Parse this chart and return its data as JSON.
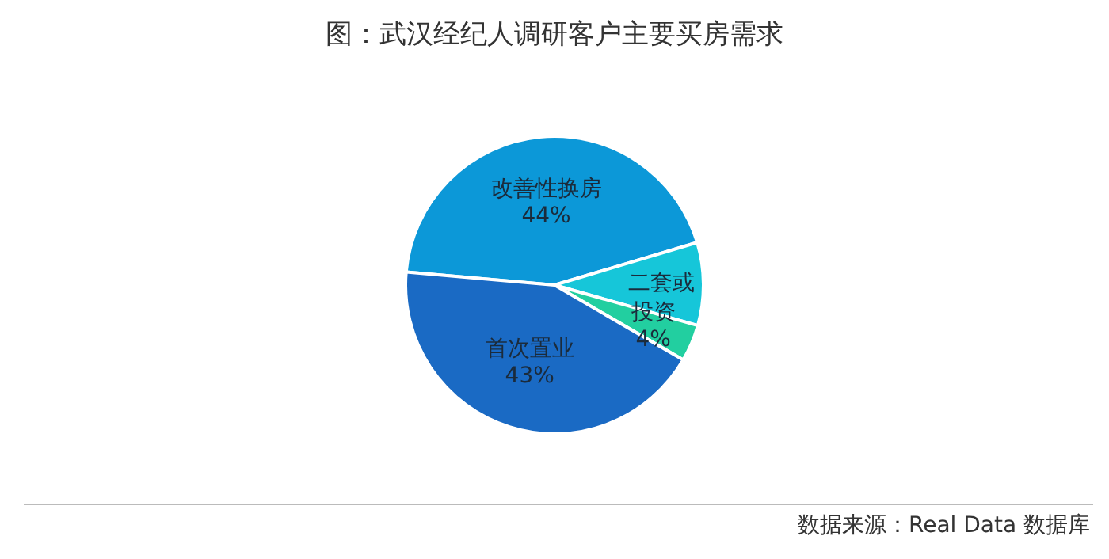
{
  "chart_data": {
    "type": "pie",
    "title": "图：武汉经纪人调研客户主要买房需求",
    "categories": [
      "改善性换房",
      "二套或",
      "投资",
      "首次置业"
    ],
    "values": [
      44,
      9,
      4,
      43
    ],
    "colors": [
      "#0c98d8",
      "#16c6d9",
      "#22cfa0",
      "#1a6ac4"
    ],
    "value_labels": [
      "44%",
      null,
      "4%",
      "43%"
    ],
    "annotations": [
      "数据来源：Real Data 数据库"
    ]
  }
}
